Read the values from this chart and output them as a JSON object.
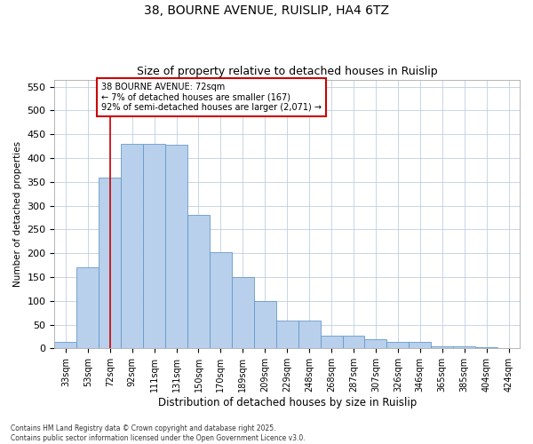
{
  "title1": "38, BOURNE AVENUE, RUISLIP, HA4 6TZ",
  "title2": "Size of property relative to detached houses in Ruislip",
  "xlabel": "Distribution of detached houses by size in Ruislip",
  "ylabel": "Number of detached properties",
  "categories": [
    "33sqm",
    "53sqm",
    "72sqm",
    "92sqm",
    "111sqm",
    "131sqm",
    "150sqm",
    "170sqm",
    "189sqm",
    "209sqm",
    "229sqm",
    "248sqm",
    "268sqm",
    "287sqm",
    "307sqm",
    "326sqm",
    "346sqm",
    "365sqm",
    "385sqm",
    "404sqm",
    "424sqm"
  ],
  "values": [
    14,
    170,
    358,
    430,
    430,
    428,
    280,
    203,
    150,
    100,
    59,
    59,
    27,
    27,
    20,
    13,
    13,
    5,
    4,
    2,
    1
  ],
  "bar_color": "#b8d0eb",
  "bar_edge_color": "#6699cc",
  "vline_color": "#cc0000",
  "annotation_line1": "38 BOURNE AVENUE: 72sqm",
  "annotation_line2": "← 7% of detached houses are smaller (167)",
  "annotation_line3": "92% of semi-detached houses are larger (2,071) →",
  "annotation_box_edge": "#cc0000",
  "vline_xindex": 2,
  "ylim": [
    0,
    565
  ],
  "yticks": [
    0,
    50,
    100,
    150,
    200,
    250,
    300,
    350,
    400,
    450,
    500,
    550
  ],
  "footer1": "Contains HM Land Registry data © Crown copyright and database right 2025.",
  "footer2": "Contains public sector information licensed under the Open Government Licence v3.0.",
  "bg_color": "#ffffff",
  "grid_color": "#c0cfe0"
}
